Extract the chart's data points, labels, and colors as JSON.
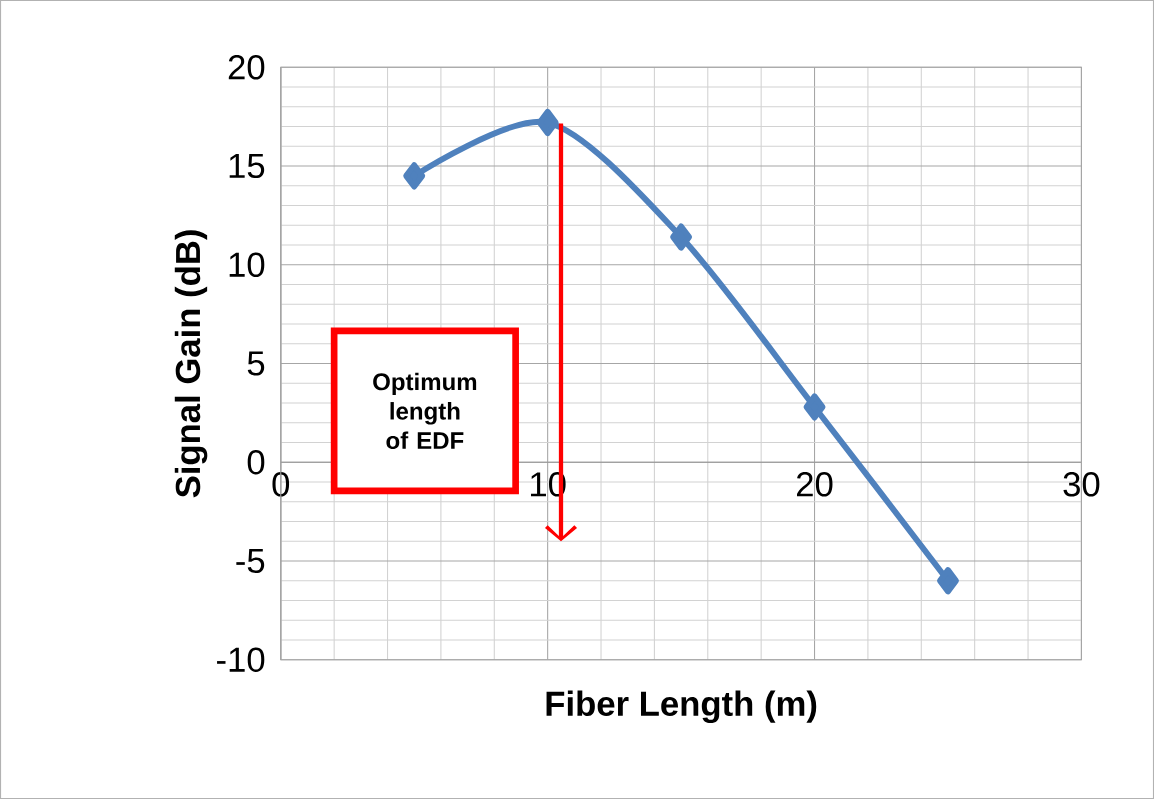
{
  "chart_data": {
    "type": "line",
    "xlabel": "Fiber Length (m)",
    "ylabel": "Signal Gain (dB)",
    "x": [
      5,
      10,
      15,
      20,
      25
    ],
    "series": [
      {
        "color": "#4f81bd",
        "values": [
          14.5,
          17.2,
          11.4,
          2.8,
          -6
        ]
      }
    ],
    "xlim": [
      0,
      30
    ],
    "xticks": [
      0,
      10,
      20,
      30
    ],
    "ylim": [
      -10,
      20
    ],
    "yticks": [
      -10,
      -5,
      0,
      5,
      10,
      15,
      20
    ],
    "grid": true,
    "marker": "diamond",
    "line_style": "solid",
    "annotations": [
      "Optimum length of EDF"
    ]
  }
}
